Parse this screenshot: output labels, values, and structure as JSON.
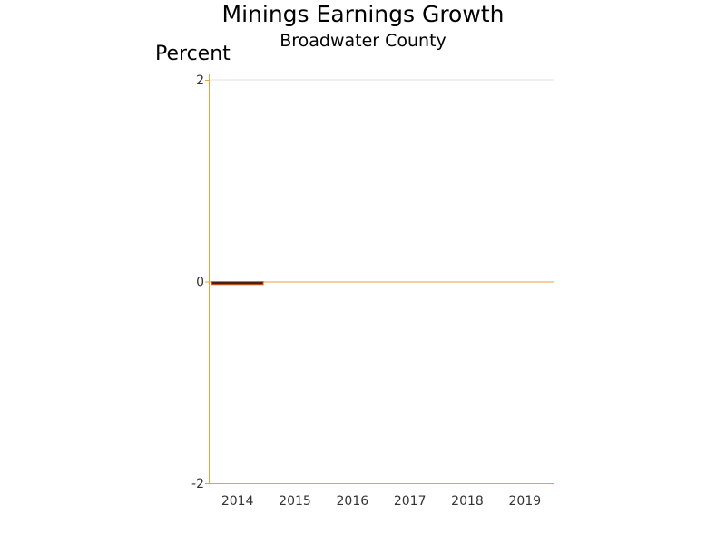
{
  "chart_data": {
    "type": "bar",
    "title": "Minings Earnings Growth",
    "subtitle": "Broadwater County",
    "ylabel": "Percent",
    "xlabel": "",
    "categories": [
      "2014",
      "2015",
      "2016",
      "2017",
      "2018",
      "2019"
    ],
    "series": [
      {
        "values": [
          -0.03,
          null,
          null,
          null,
          null,
          null
        ]
      }
    ],
    "ylim": [
      -2,
      2
    ],
    "yticks": [
      2,
      0,
      -2
    ],
    "ytick_labels": [
      "2",
      "0",
      "-2"
    ],
    "grid": "horizontal at top",
    "colors": {
      "axis": "#e8a33a",
      "bar_fill": "#4a1e1e",
      "bar_outline": "#e8722a",
      "grid": "#e0e0e0"
    }
  }
}
